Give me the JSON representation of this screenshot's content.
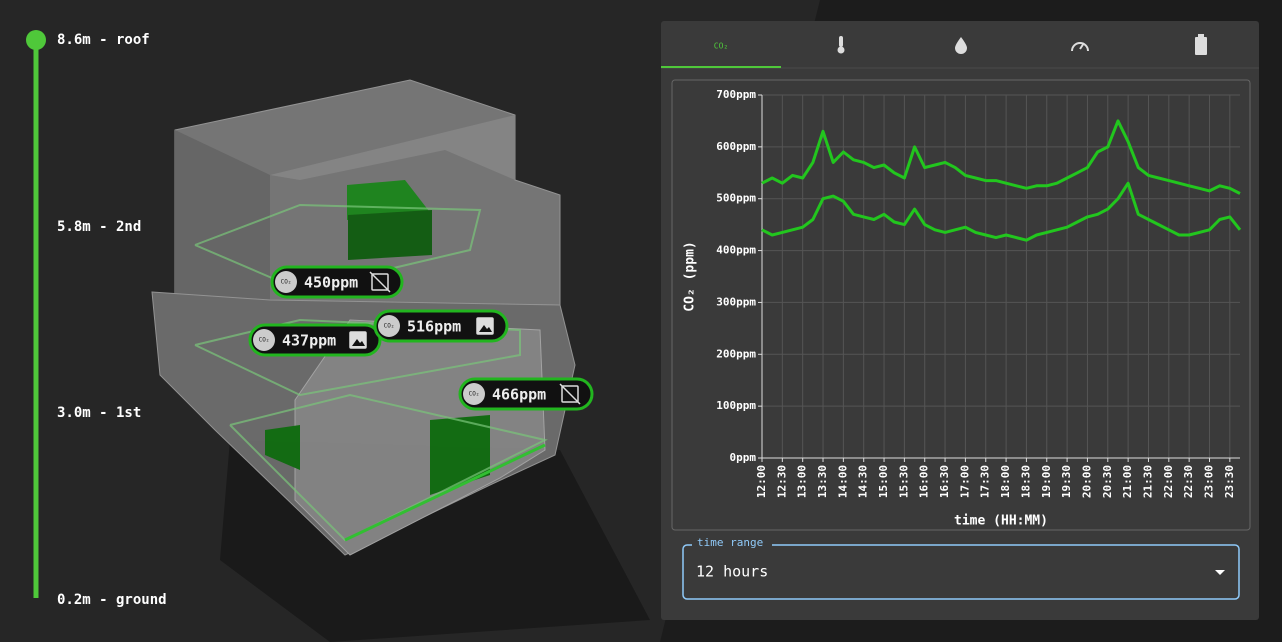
{
  "levels": [
    "8.6m - roof",
    "5.8m - 2nd",
    "3.0m - 1st",
    "0.2m - ground"
  ],
  "co2_icon": "CO₂",
  "sensors": [
    {
      "label": "450ppm"
    },
    {
      "label": "437ppm"
    },
    {
      "label": "516ppm"
    },
    {
      "label": "466ppm"
    }
  ],
  "time_range": {
    "legend": "time range",
    "value": "12 hours"
  },
  "chart_data": {
    "type": "line",
    "x_label": "time (HH:MM)",
    "y_label": "CO₂ (ppm)",
    "categories": [
      "12:00",
      null,
      "12:30",
      null,
      "13:00",
      null,
      "13:30",
      null,
      "14:00",
      null,
      "14:30",
      null,
      "15:00",
      null,
      "15:30",
      null,
      "16:00",
      null,
      "16:30",
      null,
      "17:00",
      null,
      "17:30",
      null,
      "18:00",
      null,
      "18:30",
      null,
      "19:00",
      null,
      "19:30",
      null,
      "20:00",
      null,
      "20:30",
      null,
      "21:00",
      null,
      "21:30",
      null,
      "22:00",
      null,
      "22:30",
      null,
      "23:00",
      null,
      "23:30",
      null
    ],
    "series": [
      {
        "color": "#22c61e",
        "values": [
          530,
          540,
          530,
          545,
          540,
          570,
          630,
          570,
          590,
          575,
          570,
          560,
          565,
          550,
          540,
          600,
          560,
          565,
          570,
          560,
          545,
          540,
          535,
          535,
          530,
          525,
          520,
          525,
          525,
          530,
          540,
          550,
          560,
          590,
          600,
          650,
          610,
          560,
          545,
          540,
          535,
          530,
          525,
          520,
          515,
          525,
          520,
          510
        ]
      },
      {
        "color": "#22c61e",
        "values": [
          440,
          430,
          435,
          440,
          445,
          460,
          500,
          505,
          495,
          470,
          465,
          460,
          470,
          455,
          450,
          480,
          450,
          440,
          435,
          440,
          445,
          435,
          430,
          425,
          430,
          425,
          420,
          430,
          435,
          440,
          445,
          455,
          465,
          470,
          480,
          500,
          530,
          470,
          460,
          450,
          440,
          430,
          430,
          435,
          440,
          460,
          465,
          440
        ]
      }
    ],
    "ylim": [
      0,
      700
    ],
    "yticks": [
      {
        "value": 0,
        "label": "0ppm"
      },
      {
        "value": 100,
        "label": "100ppm"
      },
      {
        "value": 200,
        "label": "200ppm"
      },
      {
        "value": 300,
        "label": "300ppm"
      },
      {
        "value": 400,
        "label": "400ppm"
      },
      {
        "value": 500,
        "label": "500ppm"
      },
      {
        "value": 600,
        "label": "600ppm"
      },
      {
        "value": 700,
        "label": "700ppm"
      }
    ],
    "grid": true
  }
}
